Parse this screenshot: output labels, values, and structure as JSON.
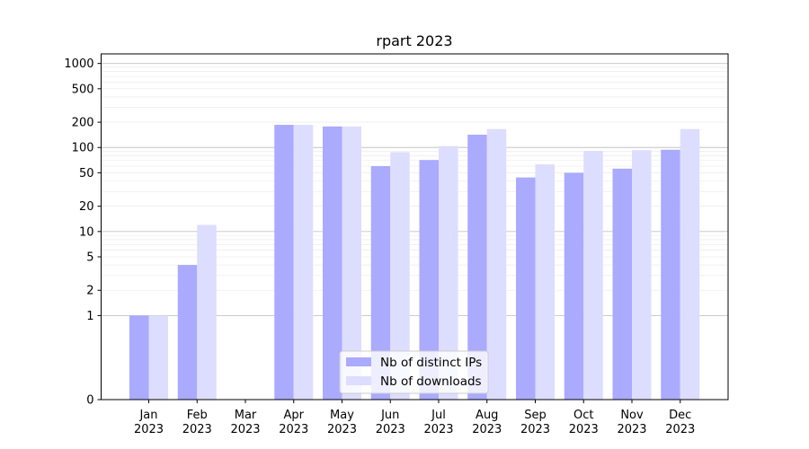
{
  "chart_data": {
    "type": "bar",
    "title": "rpart 2023",
    "xlabel": "",
    "ylabel": "",
    "yscale": "symlog",
    "ylim": [
      0,
      1300
    ],
    "yticks": [
      0,
      1,
      2,
      5,
      10,
      20,
      50,
      100,
      200,
      500,
      1000
    ],
    "ytick_labels": [
      "0",
      "1",
      "2",
      "5",
      "10",
      "20",
      "50",
      "100",
      "200",
      "500",
      "1000"
    ],
    "categories": [
      "Jan\n2023",
      "Feb\n2023",
      "Mar\n2023",
      "Apr\n2023",
      "May\n2023",
      "Jun\n2023",
      "Jul\n2023",
      "Aug\n2023",
      "Sep\n2023",
      "Oct\n2023",
      "Nov\n2023",
      "Dec\n2023"
    ],
    "series": [
      {
        "name": "Nb of distinct IPs",
        "color": "#aaaaff",
        "values": [
          1,
          4,
          0,
          186,
          178,
          60,
          71,
          142,
          44,
          50,
          56,
          94
        ]
      },
      {
        "name": "Nb of downloads",
        "color": "#ddddff",
        "values": [
          1,
          12,
          0,
          186,
          178,
          88,
          104,
          166,
          63,
          91,
          93,
          166
        ]
      }
    ],
    "legend": "lower center",
    "grid": "y major and minor"
  }
}
